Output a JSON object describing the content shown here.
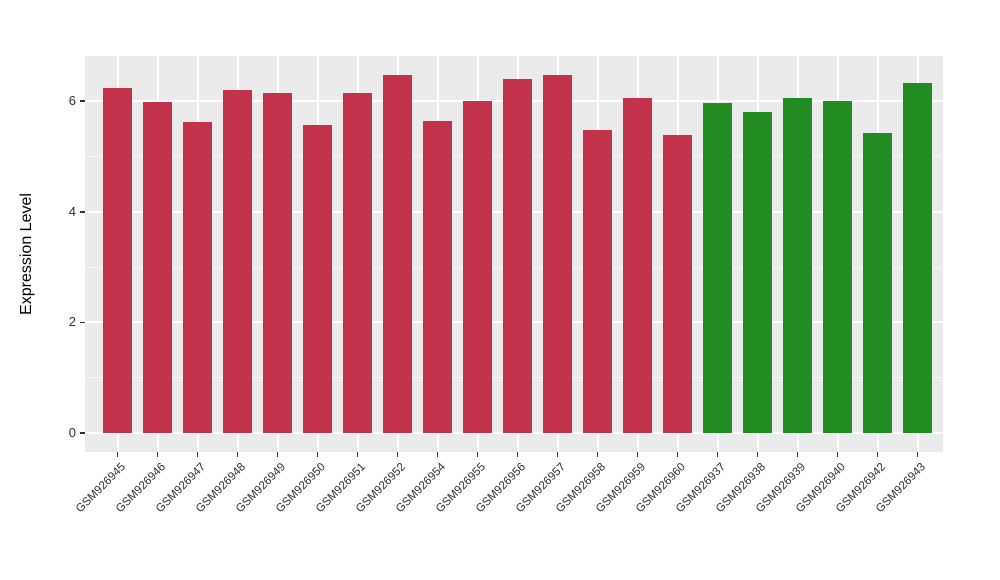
{
  "figure": {
    "background": "#ffffff",
    "panel_background": "#EBEBEB",
    "gridline_color": "#FFFFFF",
    "tick_color": "#333333",
    "axis_text_color": "#303030"
  },
  "chart_data": {
    "type": "bar",
    "title": "",
    "xlabel": "",
    "ylabel": "Expression Level",
    "ylim": [
      0,
      6.8
    ],
    "yticks": [
      0,
      2,
      4,
      6
    ],
    "yticks_minor": [
      1,
      3,
      5
    ],
    "grid": true,
    "legend": false,
    "categories": [
      "GSM926945",
      "GSM926946",
      "GSM926947",
      "GSM926948",
      "GSM926949",
      "GSM926950",
      "GSM926951",
      "GSM926952",
      "GSM926954",
      "GSM926955",
      "GSM926956",
      "GSM926957",
      "GSM926958",
      "GSM926959",
      "GSM926960",
      "GSM926937",
      "GSM926938",
      "GSM926939",
      "GSM926940",
      "GSM926942",
      "GSM926943"
    ],
    "values": [
      6.24,
      5.99,
      5.62,
      6.2,
      6.14,
      5.57,
      6.14,
      6.47,
      5.65,
      6.0,
      6.4,
      6.47,
      5.48,
      6.05,
      5.38,
      5.96,
      5.81,
      6.05,
      6.0,
      5.42,
      6.33
    ],
    "groups": [
      "red",
      "red",
      "red",
      "red",
      "red",
      "red",
      "red",
      "red",
      "red",
      "red",
      "red",
      "red",
      "red",
      "red",
      "red",
      "green",
      "green",
      "green",
      "green",
      "green",
      "green"
    ],
    "group_colors": {
      "red": "#C2334B",
      "green": "#228B22"
    }
  }
}
